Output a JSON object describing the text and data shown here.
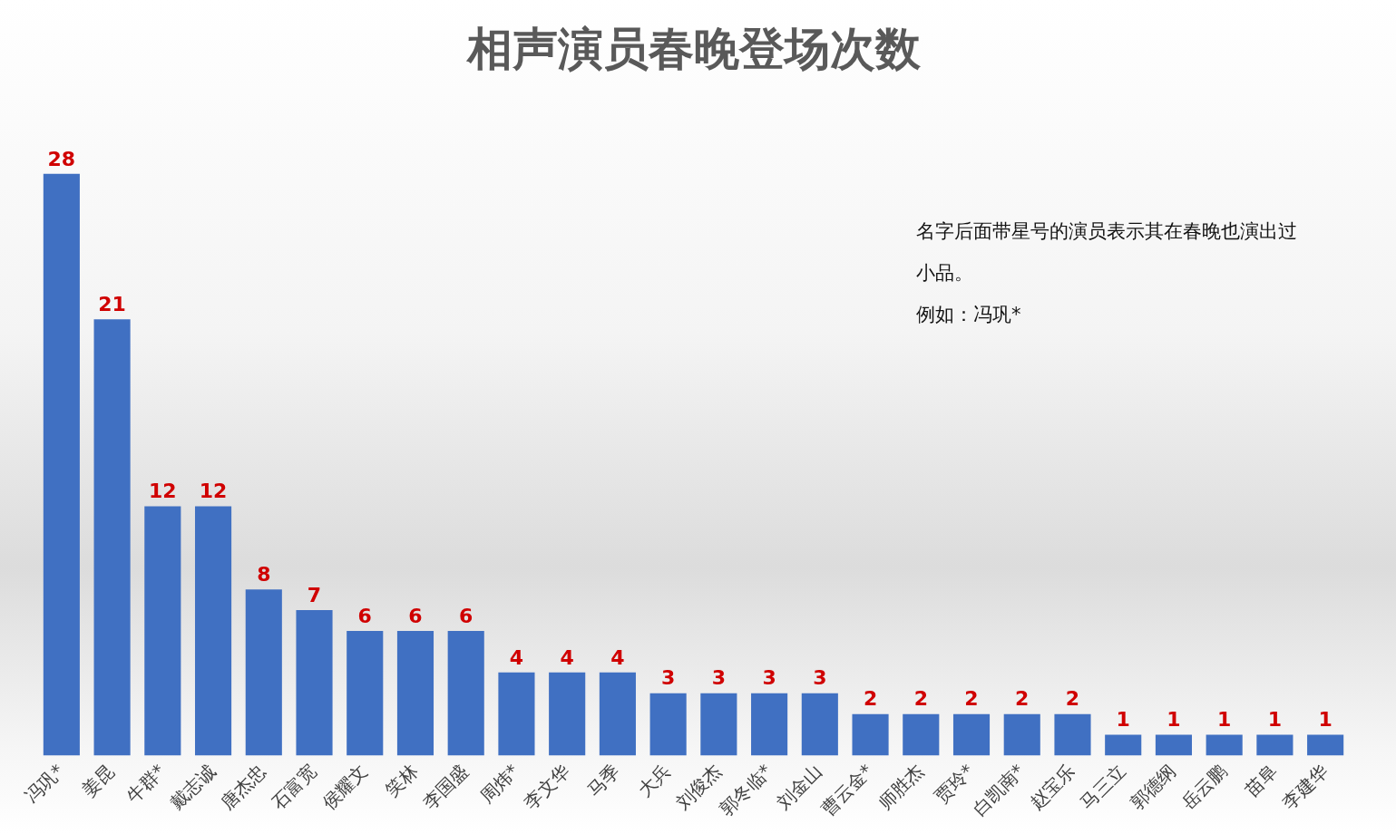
{
  "chart_data": {
    "type": "bar",
    "title": "相声演员春晚登场次数",
    "categories": [
      "冯巩*",
      "姜昆",
      "牛群*",
      "戴志诚",
      "唐杰忠",
      "石富宽",
      "侯耀文",
      "笑林",
      "李国盛",
      "周炜*",
      "李文华",
      "马季",
      "大兵",
      "刘俊杰",
      "郭冬临*",
      "刘金山",
      "曹云金*",
      "师胜杰",
      "贾玲*",
      "白凯南*",
      "赵宝乐",
      "马三立",
      "郭德纲",
      "岳云鹏",
      "苗阜",
      "李建华"
    ],
    "values": [
      28,
      21,
      12,
      12,
      8,
      7,
      6,
      6,
      6,
      4,
      4,
      4,
      3,
      3,
      3,
      3,
      2,
      2,
      2,
      2,
      2,
      1,
      1,
      1,
      1,
      1
    ],
    "color": "#4070c2",
    "data_labels": true,
    "grid": false,
    "legend": false,
    "annotations": [
      "名字后面带星号的演员表示其在春晚也演出过小品。",
      "例如：冯巩*"
    ]
  }
}
